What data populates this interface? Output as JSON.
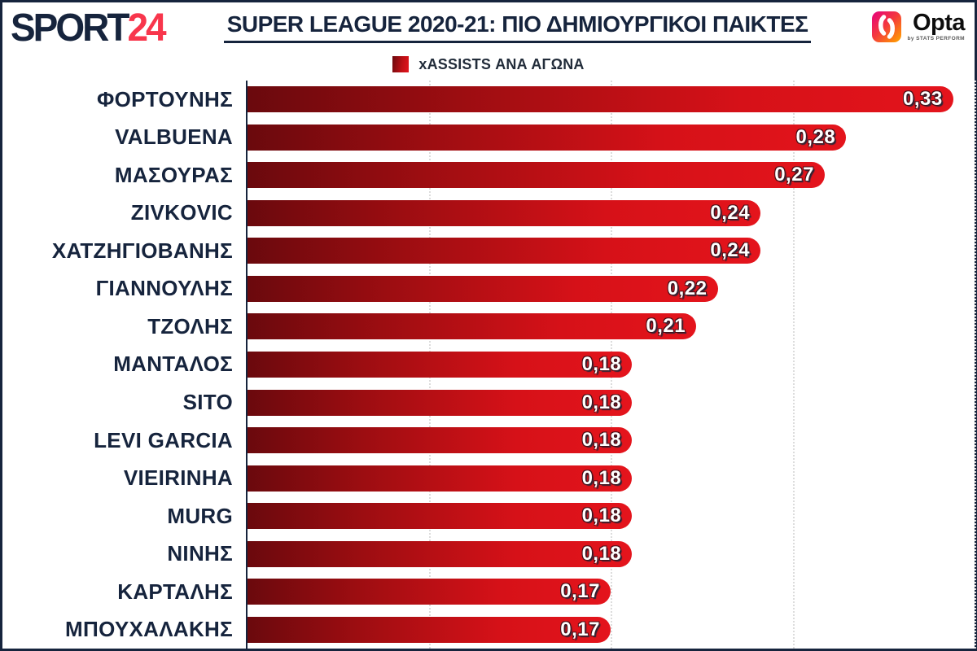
{
  "header": {
    "brand": {
      "part1": "SPORT",
      "part2": "24"
    },
    "title": "SUPER LEAGUE 2020-21: ΠΙΟ ΔΗΜΙΟΥΡΓΙΚΟΙ ΠΑΙΚΤΕΣ",
    "opta": {
      "name": "Opta",
      "byline": "by STATS PERFORM"
    }
  },
  "legend": {
    "label": "xASSISTS ΑΝΑ ΑΓΩΝΑ"
  },
  "chart_data": {
    "type": "bar",
    "orientation": "horizontal",
    "title": "SUPER LEAGUE 2020-21: ΠΙΟ ΔΗΜΙΟΥΡΓΙΚΟΙ ΠΑΙΚΤΕΣ",
    "series_name": "xASSISTS ΑΝΑ ΑΓΩΝΑ",
    "xlim": [
      0,
      0.34
    ],
    "gridlines": [
      0.085,
      0.17,
      0.255,
      0.34
    ],
    "grid": "dotted-vertical",
    "legend_position": "top-center",
    "categories": [
      "ΦΟΡΤΟΥΝΗΣ",
      "VALBUENA",
      "ΜΑΣΟΥΡΑΣ",
      "ZIVKOVIC",
      "ΧΑΤΖΗΓΙΟΒΑΝΗΣ",
      "ΓΙΑΝΝΟΥΛΗΣ",
      "ΤΖΟΛΗΣ",
      "ΜΑΝΤΑΛΟΣ",
      "SITO",
      "LEVI GARCIA",
      "VIEIRINHA",
      "MURG",
      "ΝΙΝΗΣ",
      "ΚΑΡΤΑΛΗΣ",
      "ΜΠΟΥΧΑΛΑΚΗΣ"
    ],
    "values": [
      0.33,
      0.28,
      0.27,
      0.24,
      0.24,
      0.22,
      0.21,
      0.18,
      0.18,
      0.18,
      0.18,
      0.18,
      0.18,
      0.17,
      0.17
    ],
    "players": [
      {
        "name": "ΦΟΡΤΟΥΝΗΣ",
        "value": 0.33,
        "label": "0,33"
      },
      {
        "name": "VALBUENA",
        "value": 0.28,
        "label": "0,28"
      },
      {
        "name": "ΜΑΣΟΥΡΑΣ",
        "value": 0.27,
        "label": "0,27"
      },
      {
        "name": "ZIVKOVIC",
        "value": 0.24,
        "label": "0,24"
      },
      {
        "name": "ΧΑΤΖΗΓΙΟΒΑΝΗΣ",
        "value": 0.24,
        "label": "0,24"
      },
      {
        "name": "ΓΙΑΝΝΟΥΛΗΣ",
        "value": 0.22,
        "label": "0,22"
      },
      {
        "name": "ΤΖΟΛΗΣ",
        "value": 0.21,
        "label": "0,21"
      },
      {
        "name": "ΜΑΝΤΑΛΟΣ",
        "value": 0.18,
        "label": "0,18"
      },
      {
        "name": "SITO",
        "value": 0.18,
        "label": "0,18"
      },
      {
        "name": "LEVI GARCIA",
        "value": 0.18,
        "label": "0,18"
      },
      {
        "name": "VIEIRINHA",
        "value": 0.18,
        "label": "0,18"
      },
      {
        "name": "MURG",
        "value": 0.18,
        "label": "0,18"
      },
      {
        "name": "ΝΙΝΗΣ",
        "value": 0.18,
        "label": "0,18"
      },
      {
        "name": "ΚΑΡΤΑΛΗΣ",
        "value": 0.17,
        "label": "0,17"
      },
      {
        "name": "ΜΠΟΥΧΑΛΑΚΗΣ",
        "value": 0.17,
        "label": "0,17"
      }
    ],
    "colors": {
      "bar_gradient_start": "#6a090d",
      "bar_gradient_end": "#e4141c",
      "label_navy": "#16243d",
      "brand_red": "#f8364c",
      "value_text": "#ffffff"
    }
  }
}
